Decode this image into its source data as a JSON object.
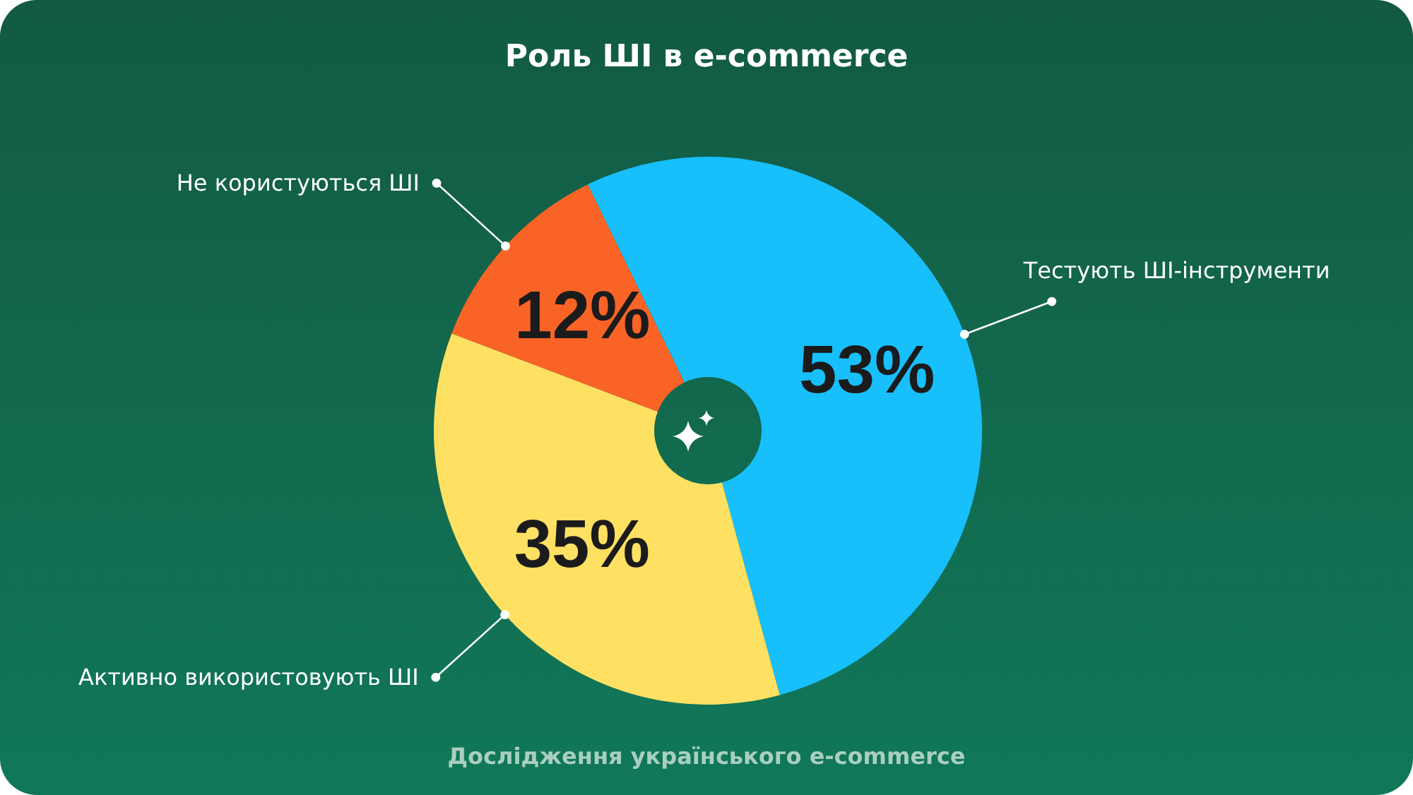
{
  "chart_data": {
    "type": "donut",
    "title": "Роль ШІ в e-commerce",
    "categories": [
      "Тестують ШІ-інструменти",
      "Активно використовують ШІ",
      "Не користуються ШІ"
    ],
    "values": [
      53,
      35,
      12
    ],
    "colors": [
      "#17bffb",
      "#fee062",
      "#f96426"
    ],
    "value_labels": [
      "53%",
      "35%",
      "12%"
    ],
    "annotations": [
      "Дослідження українського e-commerce"
    ]
  }
}
